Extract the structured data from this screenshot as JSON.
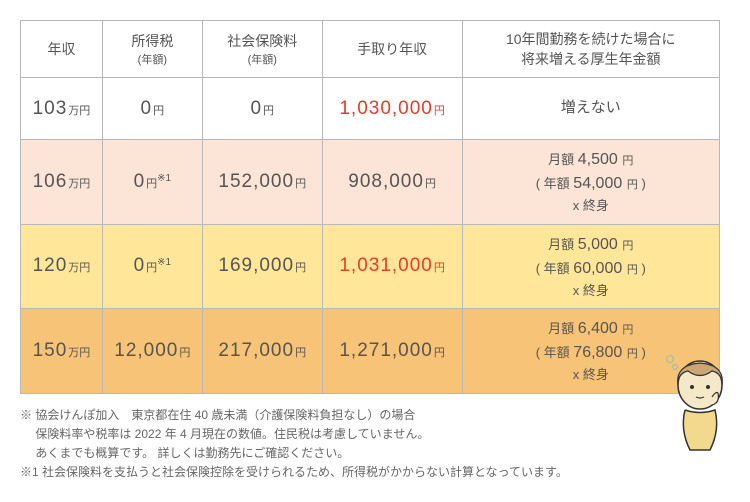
{
  "headers": {
    "income": "年収",
    "tax": "所得税",
    "tax_sub": "(年額)",
    "social": "社会保険料",
    "social_sub": "(年額)",
    "net": "手取り年収",
    "pension": "10年間勤務を続けた場合に\n将来増える厚生年金額"
  },
  "unit_man": "万円",
  "unit_yen": "円",
  "note_ref": "※1",
  "rows": [
    {
      "class": "row-white",
      "income": "103",
      "tax": "0",
      "tax_note": "",
      "social": "0",
      "net": "1,030,000",
      "net_red": true,
      "pension_plain": "増えない"
    },
    {
      "class": "row-pink",
      "income": "106",
      "tax": "0",
      "tax_note": "※1",
      "social": "152,000",
      "net": "908,000",
      "net_red": false,
      "pension_monthly": "4,500",
      "pension_yearly": "54,000"
    },
    {
      "class": "row-yellow",
      "income": "120",
      "tax": "0",
      "tax_note": "※1",
      "social": "169,000",
      "net": "1,031,000",
      "net_red": true,
      "pension_monthly": "5,000",
      "pension_yearly": "60,000"
    },
    {
      "class": "row-orange",
      "income": "150",
      "tax": "12,000",
      "tax_note": "",
      "social": "217,000",
      "net": "1,271,000",
      "net_red": false,
      "pension_monthly": "6,400",
      "pension_yearly": "76,800"
    }
  ],
  "pension_labels": {
    "monthly": "月額",
    "yearly_pre": "( 年額",
    "yearly_post": ")",
    "life": "x 終身"
  },
  "notes": {
    "n1": "※ 協会けんぽ加入　東京都在住 40 歳未満（介護保険料負担なし）の場合",
    "n2": "　 保険料率や税率は 2022 年 4 月現在の数値。住民税は考慮していません。",
    "n3": "　 あくまでも概算です。 詳しくは勤務先にご確認ください。",
    "n4": "※1 社会保険料を支払うと社会保険控除を受けられるため、所得税がかからない計算となっています。"
  },
  "colors": {
    "row_white": "#ffffff",
    "row_pink": "#fce4d6",
    "row_yellow": "#ffe699",
    "row_orange": "#f7c376",
    "red": "#e63c28",
    "border": "#b8b8b8"
  }
}
